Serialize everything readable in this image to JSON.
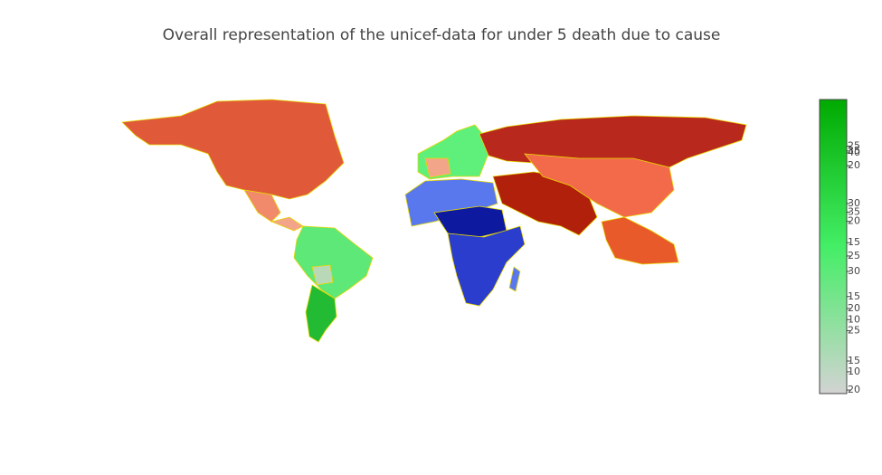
{
  "chart_data": {
    "type": "choropleth",
    "title": "Overall representation of the unicef-data for under 5 death due to cause",
    "colorscale": [
      "#d3d3d3",
      "#00aa00"
    ],
    "colorbars": [
      {
        "ylim": [
          19.7,
          44.5
        ],
        "yticks": [
          20,
          25,
          30,
          35,
          40
        ]
      },
      {
        "ylim": [
          8.55,
          28.1
        ],
        "yticks": [
          10,
          15,
          20,
          25
        ]
      },
      {
        "ylim": [
          11.9,
          39.9
        ],
        "yticks": [
          15,
          20,
          25,
          30,
          35
        ]
      },
      {
        "ylim": [
          5.2,
          24.3
        ],
        "yticks": [
          10,
          15,
          20
        ]
      }
    ]
  }
}
